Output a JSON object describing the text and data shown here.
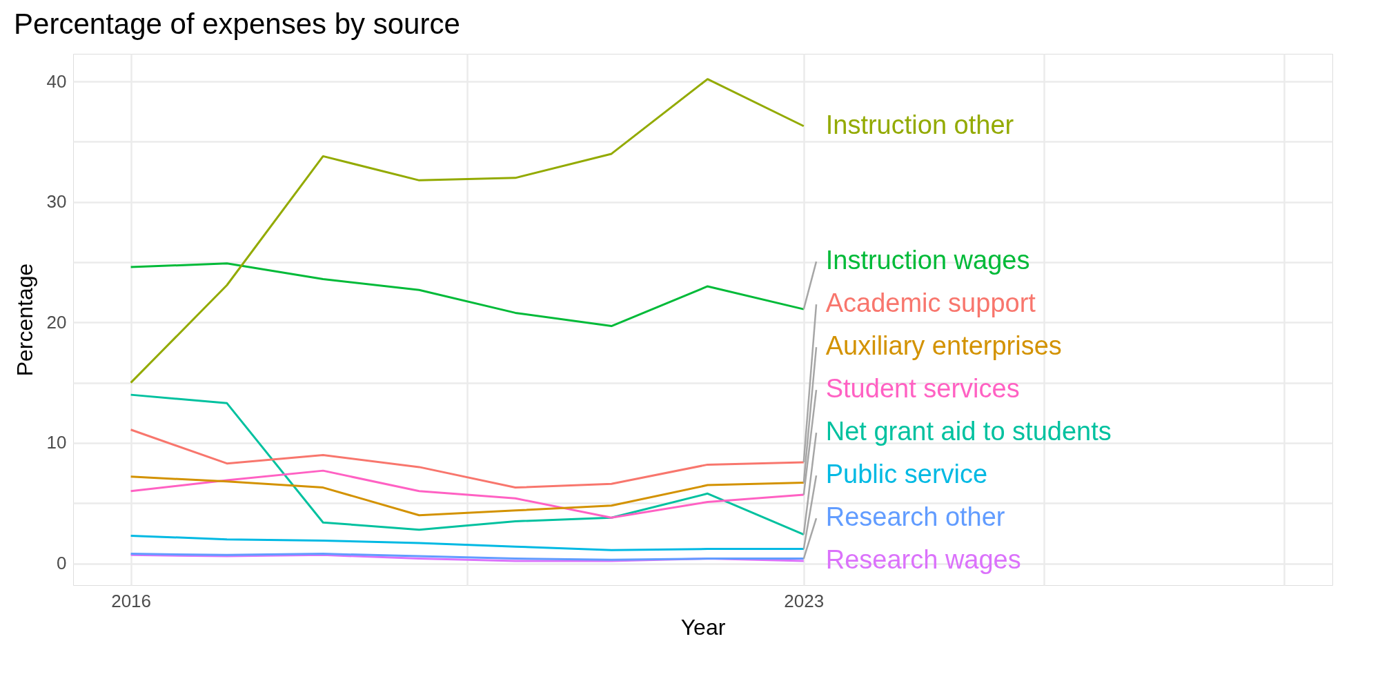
{
  "chart_data": {
    "type": "line",
    "title": "Percentage of expenses by source",
    "xlabel": "Year",
    "ylabel": "Percentage",
    "x": [
      2016,
      2017,
      2018,
      2019,
      2020,
      2021,
      2022,
      2023
    ],
    "xlim": [
      2015.4,
      2028.5
    ],
    "xticks": [
      2016,
      {
        "value": 2019.5,
        "label": null
      },
      2023,
      {
        "value": 2025.5,
        "label": null
      },
      {
        "value": 2028,
        "label": null
      }
    ],
    "ylim": [
      -1.8,
      42.3
    ],
    "yticks": [
      0,
      {
        "value": 5,
        "label": null
      },
      10,
      {
        "value": 15,
        "label": null
      },
      20,
      {
        "value": 25,
        "label": null
      },
      30,
      {
        "value": 35,
        "label": null
      },
      40
    ],
    "grid": true,
    "legend": false,
    "marker": "none",
    "line_style": "solid",
    "series": [
      {
        "name": "Instruction other",
        "color": "#93aa00",
        "values": [
          15.0,
          23.1,
          33.8,
          31.8,
          32.0,
          34.0,
          40.2,
          36.3
        ]
      },
      {
        "name": "Instruction wages",
        "color": "#00ba38",
        "values": [
          24.6,
          24.9,
          23.6,
          22.7,
          20.8,
          19.7,
          23.0,
          21.1
        ]
      },
      {
        "name": "Academic support",
        "color": "#f8766d",
        "values": [
          11.1,
          8.3,
          9.0,
          8.0,
          6.3,
          6.6,
          8.2,
          8.4
        ]
      },
      {
        "name": "Auxiliary enterprises",
        "color": "#d39200",
        "values": [
          7.2,
          6.8,
          6.3,
          4.0,
          4.4,
          4.8,
          6.5,
          6.7
        ]
      },
      {
        "name": "Student services",
        "color": "#ff61c3",
        "values": [
          6.0,
          6.9,
          7.7,
          6.0,
          5.4,
          3.8,
          5.1,
          5.7
        ]
      },
      {
        "name": "Net grant aid to students",
        "color": "#00c19f",
        "values": [
          14.0,
          13.3,
          3.4,
          2.8,
          3.5,
          3.8,
          5.8,
          2.4
        ]
      },
      {
        "name": "Public service",
        "color": "#00b9e3",
        "values": [
          2.3,
          2.0,
          1.9,
          1.7,
          1.4,
          1.1,
          1.2,
          1.2
        ]
      },
      {
        "name": "Research other",
        "color": "#619cff",
        "values": [
          0.8,
          0.7,
          0.8,
          0.6,
          0.4,
          0.3,
          0.4,
          0.4
        ]
      },
      {
        "name": "Research wages",
        "color": "#db72fb",
        "values": [
          0.7,
          0.6,
          0.7,
          0.4,
          0.2,
          0.2,
          0.4,
          0.2
        ]
      }
    ]
  }
}
